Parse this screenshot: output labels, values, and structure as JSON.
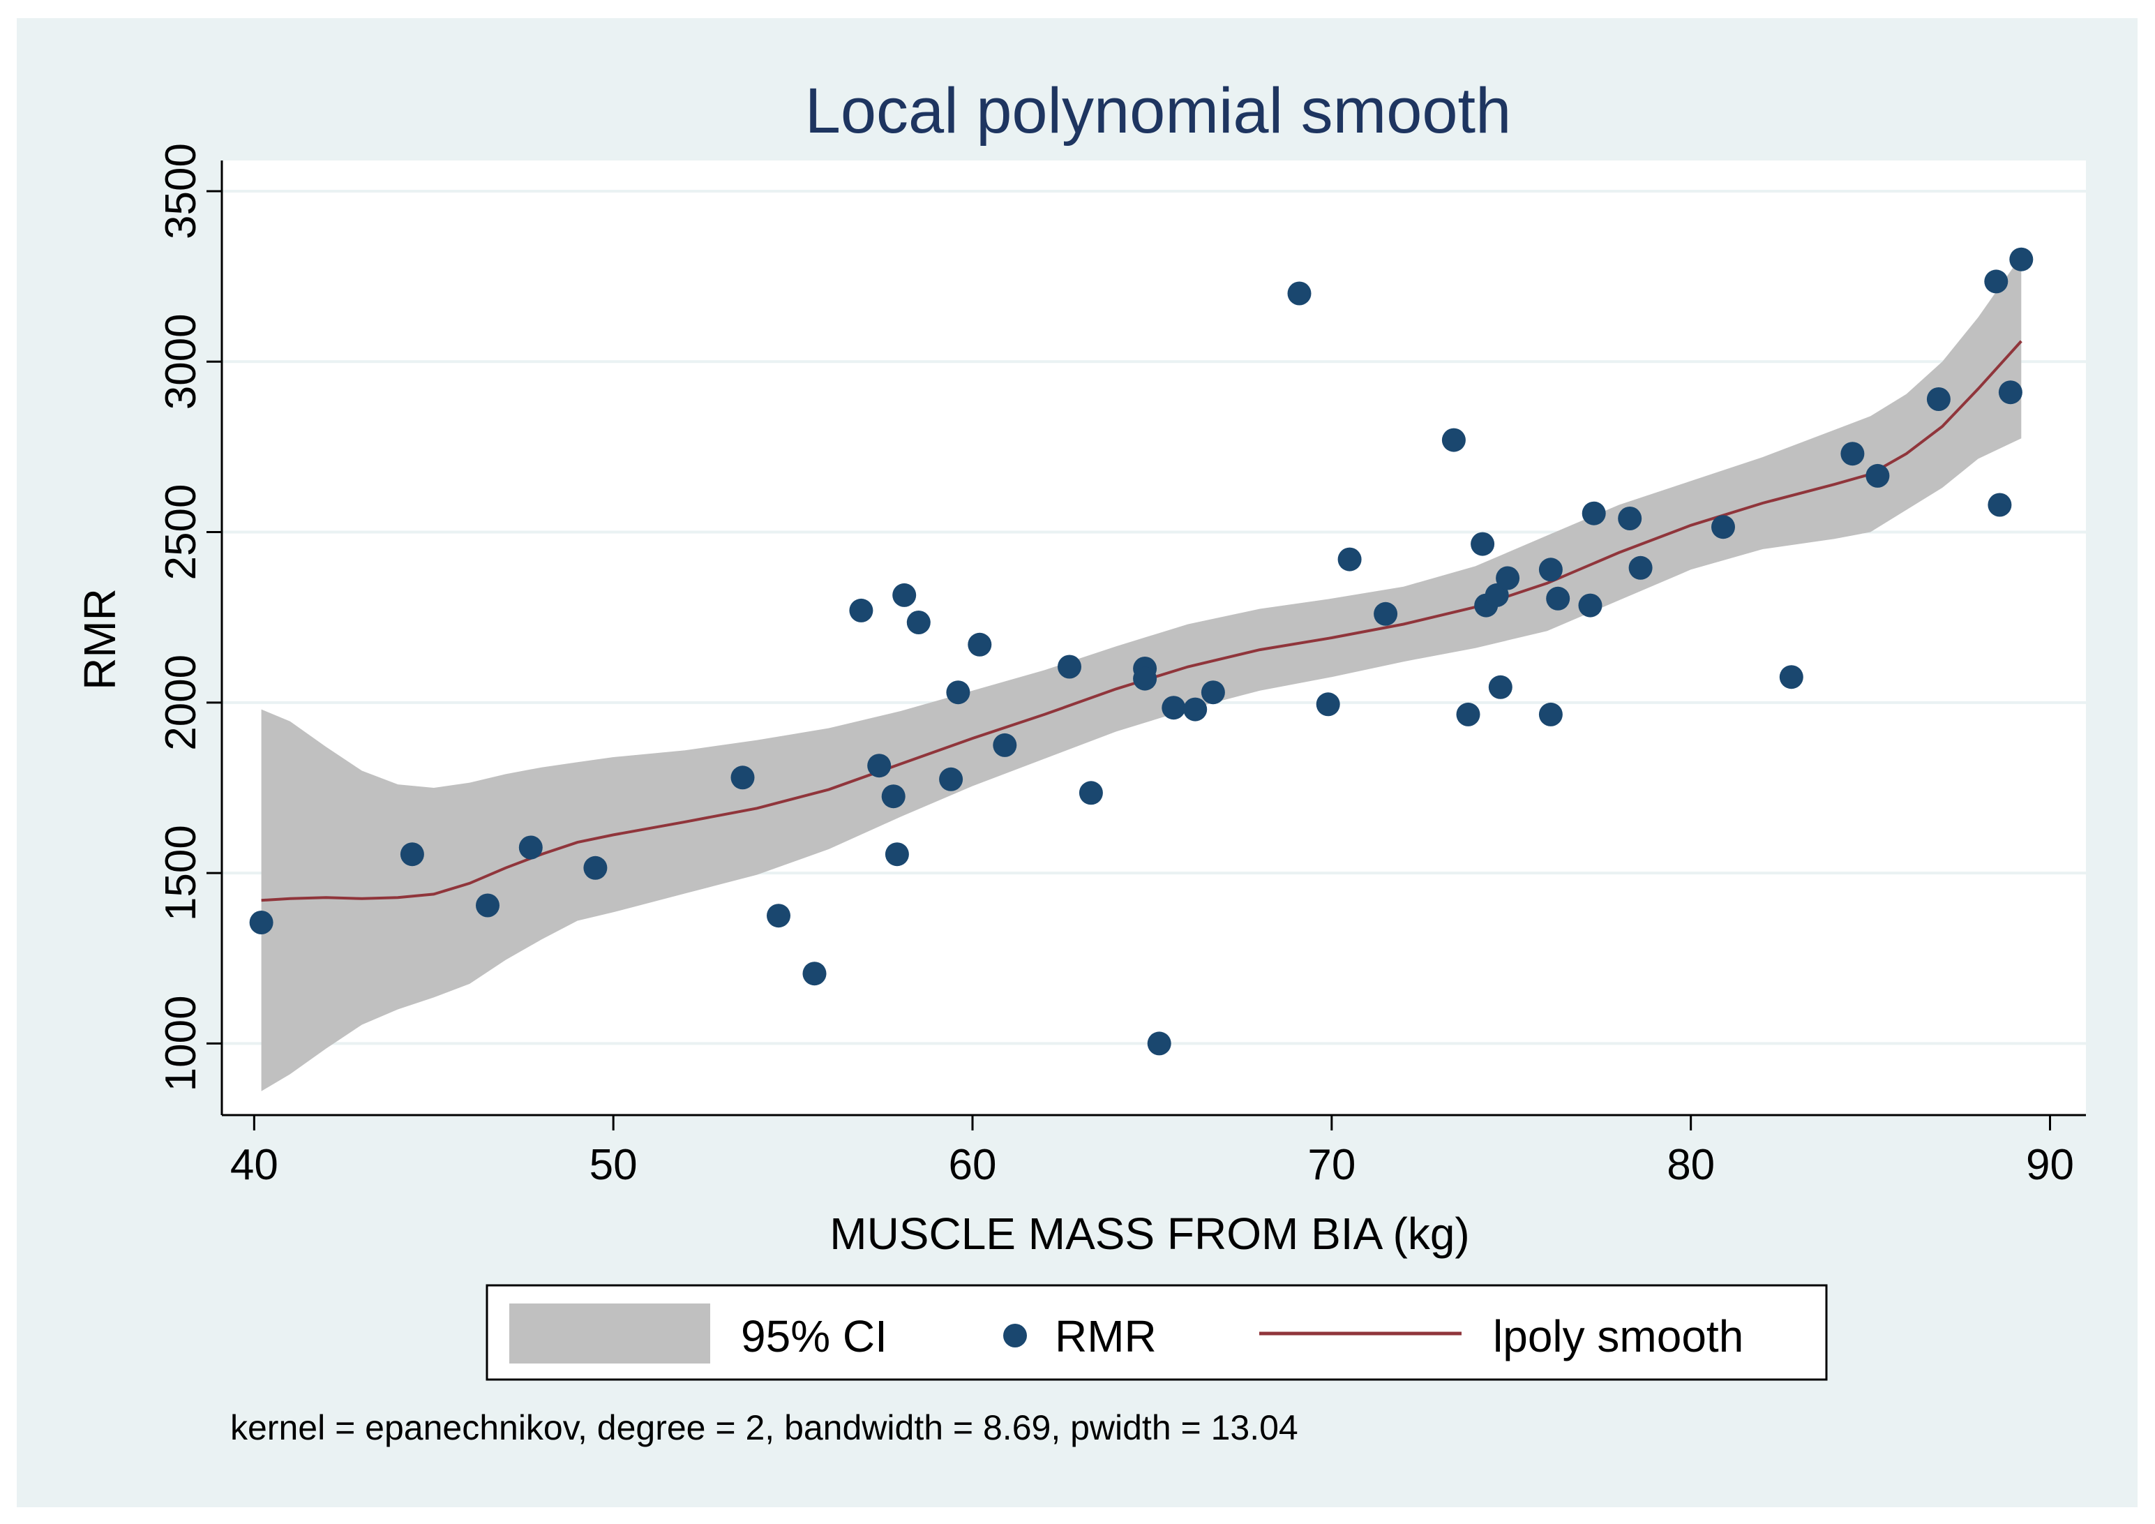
{
  "chart_data": {
    "type": "scatter",
    "title": "Local polynomial smooth",
    "xlabel": "MUSCLE MASS FROM BIA (kg)",
    "ylabel": "RMR",
    "xlim": [
      39.1,
      91
    ],
    "ylim": [
      790,
      3590
    ],
    "xticks": [
      40,
      50,
      60,
      70,
      80,
      90
    ],
    "yticks": [
      1000,
      1500,
      2000,
      2500,
      3000,
      3500
    ],
    "grid": "horizontal",
    "legend": [
      "95% CI",
      "RMR",
      "lpoly smooth"
    ],
    "legend_position": "bottom",
    "note": "kernel = epanechnikov, degree = 2, bandwidth = 8.69, pwidth = 13.04",
    "series": [
      {
        "name": "RMR",
        "type": "scatter",
        "points": [
          [
            40.2,
            1355
          ],
          [
            44.4,
            1555
          ],
          [
            46.5,
            1405
          ],
          [
            47.7,
            1575
          ],
          [
            49.5,
            1515
          ],
          [
            53.6,
            1780
          ],
          [
            54.6,
            1375
          ],
          [
            55.6,
            1205
          ],
          [
            56.9,
            2270
          ],
          [
            57.4,
            1815
          ],
          [
            57.8,
            1725
          ],
          [
            57.9,
            1555
          ],
          [
            58.1,
            2315
          ],
          [
            58.5,
            2235
          ],
          [
            59.4,
            1775
          ],
          [
            59.6,
            2030
          ],
          [
            60.2,
            2170
          ],
          [
            60.9,
            1875
          ],
          [
            62.7,
            2105
          ],
          [
            63.3,
            1735
          ],
          [
            64.8,
            2100
          ],
          [
            64.8,
            2070
          ],
          [
            65.2,
            1000
          ],
          [
            65.6,
            1985
          ],
          [
            66.2,
            1980
          ],
          [
            66.7,
            2030
          ],
          [
            69.1,
            3200
          ],
          [
            69.9,
            1995
          ],
          [
            70.5,
            2420
          ],
          [
            71.5,
            2260
          ],
          [
            73.4,
            2770
          ],
          [
            73.8,
            1965
          ],
          [
            74.2,
            2465
          ],
          [
            74.3,
            2285
          ],
          [
            74.6,
            2315
          ],
          [
            74.7,
            2045
          ],
          [
            74.9,
            2365
          ],
          [
            76.1,
            2390
          ],
          [
            76.1,
            1965
          ],
          [
            76.3,
            2305
          ],
          [
            77.2,
            2285
          ],
          [
            77.3,
            2555
          ],
          [
            78.3,
            2540
          ],
          [
            78.6,
            2395
          ],
          [
            80.9,
            2515
          ],
          [
            82.8,
            2075
          ],
          [
            84.5,
            2730
          ],
          [
            85.2,
            2665
          ],
          [
            86.9,
            2890
          ],
          [
            88.5,
            3235
          ],
          [
            88.6,
            2580
          ],
          [
            88.9,
            2910
          ],
          [
            89.2,
            3300
          ]
        ]
      },
      {
        "name": "lpoly smooth",
        "type": "line",
        "x": [
          40.2,
          41,
          42,
          43,
          44,
          45,
          46,
          47,
          48,
          49,
          50,
          52,
          54,
          56,
          58,
          60,
          62,
          64,
          66,
          68,
          70,
          72,
          74,
          76,
          78,
          80,
          82,
          84,
          85,
          86,
          87,
          88,
          89.2
        ],
        "y": [
          1420,
          1425,
          1428,
          1425,
          1428,
          1438,
          1470,
          1515,
          1555,
          1590,
          1612,
          1650,
          1690,
          1745,
          1820,
          1895,
          1965,
          2040,
          2105,
          2155,
          2190,
          2230,
          2280,
          2350,
          2440,
          2520,
          2585,
          2640,
          2670,
          2730,
          2810,
          2920,
          3060
        ]
      },
      {
        "name": "95% CI",
        "type": "area",
        "x": [
          40.2,
          41,
          42,
          43,
          44,
          45,
          46,
          47,
          48,
          49,
          50,
          52,
          54,
          56,
          58,
          60,
          62,
          64,
          66,
          68,
          70,
          72,
          74,
          76,
          78,
          80,
          82,
          84,
          85,
          86,
          87,
          88,
          89.2
        ],
        "upper": [
          1980,
          1945,
          1870,
          1800,
          1760,
          1750,
          1765,
          1790,
          1810,
          1825,
          1840,
          1860,
          1890,
          1925,
          1975,
          2035,
          2095,
          2165,
          2230,
          2275,
          2305,
          2340,
          2400,
          2490,
          2580,
          2650,
          2720,
          2800,
          2840,
          2905,
          3000,
          3130,
          3310
        ],
        "lower": [
          860,
          910,
          985,
          1055,
          1100,
          1135,
          1175,
          1245,
          1305,
          1360,
          1385,
          1440,
          1495,
          1570,
          1665,
          1755,
          1835,
          1915,
          1980,
          2035,
          2075,
          2120,
          2160,
          2210,
          2300,
          2390,
          2450,
          2480,
          2500,
          2565,
          2630,
          2715,
          2775
        ]
      }
    ],
    "colors": {
      "background": "#eaf2f3",
      "plot_background": "#ffffff",
      "ci_fill": "#c0c0c0",
      "marker": "#1a476f",
      "line": "#90353b",
      "grid": "#eaf2f3",
      "text": "#000000",
      "title": "#1e3560"
    }
  }
}
